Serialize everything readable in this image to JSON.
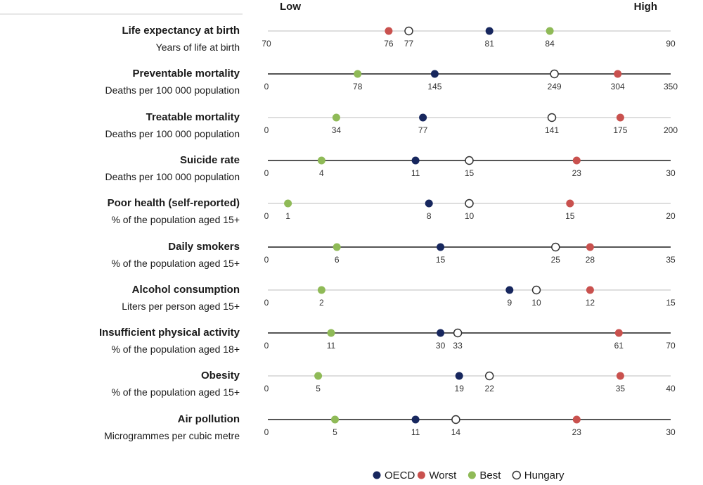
{
  "header": {
    "low": "Low",
    "high": "High"
  },
  "colors": {
    "OECD": "#17275e",
    "Worst": "#c9514e",
    "Best": "#8fba57",
    "Hungary": "#ffffff",
    "stroke_hungary": "#333333"
  },
  "chart_data": {
    "type": "scatter",
    "series_order": [
      "OECD",
      "Worst",
      "Best",
      "Hungary"
    ],
    "legend": [
      "OECD",
      "Worst",
      "Best",
      "Hungary"
    ],
    "legend_position": "bottom-right",
    "rows": [
      {
        "title": "Life expectancy at birth",
        "subtitle": "Years of life at birth",
        "min": 70,
        "max": 90,
        "min_label": "70",
        "max_label": "90",
        "points": {
          "OECD": 81,
          "Worst": 76,
          "Best": 84,
          "Hungary": 77
        },
        "labels": {
          "OECD": "81",
          "Worst": "76",
          "Best": "84",
          "Hungary": "77"
        }
      },
      {
        "title": "Preventable mortality",
        "subtitle": "Deaths per 100 000 population",
        "min": 0,
        "max": 350,
        "min_label": "0",
        "max_label": "350",
        "points": {
          "OECD": 145,
          "Worst": 304,
          "Best": 78,
          "Hungary": 249
        },
        "labels": {
          "OECD": "145",
          "Worst": "304",
          "Best": "78",
          "Hungary": "249"
        }
      },
      {
        "title": "Treatable mortality",
        "subtitle": "Deaths per 100 000 population",
        "min": 0,
        "max": 200,
        "min_label": "0",
        "max_label": "200",
        "points": {
          "OECD": 77,
          "Worst": 175,
          "Best": 34,
          "Hungary": 141
        },
        "labels": {
          "OECD": "77",
          "Worst": "175",
          "Best": "34",
          "Hungary": "141"
        }
      },
      {
        "title": "Suicide rate",
        "subtitle": "Deaths per 100 000 population",
        "min": 0,
        "max": 30,
        "min_label": "0",
        "max_label": "30",
        "points": {
          "OECD": 11,
          "Worst": 23,
          "Best": 4,
          "Hungary": 15
        },
        "labels": {
          "OECD": "11",
          "Worst": "23",
          "Best": "4",
          "Hungary": "15"
        }
      },
      {
        "title": "Poor health (self-reported)",
        "subtitle": "% of the population aged 15+",
        "min": 0,
        "max": 20,
        "min_label": "0",
        "max_label": "20",
        "points": {
          "OECD": 8,
          "Worst": 15,
          "Best": 1,
          "Hungary": 10
        },
        "labels": {
          "OECD": "8",
          "Worst": "15",
          "Best": "1",
          "Hungary": "10"
        }
      },
      {
        "title": "Daily smokers",
        "subtitle": "% of the population aged 15+",
        "min": 0,
        "max": 35,
        "min_label": "0",
        "max_label": "35",
        "points": {
          "OECD": 15,
          "Worst": 28,
          "Best": 6,
          "Hungary": 25
        },
        "labels": {
          "OECD": "15",
          "Worst": "28",
          "Best": "6",
          "Hungary": "25"
        }
      },
      {
        "title": "Alcohol consumption",
        "subtitle": "Liters per person aged 15+",
        "min": 0,
        "max": 15,
        "min_label": "0",
        "max_label": "15",
        "points": {
          "OECD": 9,
          "Worst": 12,
          "Best": 2,
          "Hungary": 10
        },
        "labels": {
          "OECD": "9",
          "Worst": "12",
          "Best": "2",
          "Hungary": "10"
        }
      },
      {
        "title": "Insufficient physical activity",
        "subtitle": "% of the population aged 18+",
        "min": 0,
        "max": 70,
        "min_label": "0",
        "max_label": "70",
        "points": {
          "OECD": 30,
          "Worst": 61,
          "Best": 11,
          "Hungary": 33
        },
        "labels": {
          "OECD": "30",
          "Worst": "61",
          "Best": "11",
          "Hungary": "33"
        }
      },
      {
        "title": "Obesity",
        "subtitle": "% of the population aged 15+",
        "min": 0,
        "max": 40,
        "min_label": "0",
        "max_label": "40",
        "points": {
          "OECD": 19,
          "Worst": 35,
          "Best": 5,
          "Hungary": 22
        },
        "labels": {
          "OECD": "19",
          "Worst": "35",
          "Best": "5",
          "Hungary": "22"
        }
      },
      {
        "title": "Air pollution",
        "subtitle": "Microgrammes per cubic metre",
        "min": 0,
        "max": 30,
        "min_label": "0",
        "max_label": "30",
        "points": {
          "OECD": 11,
          "Worst": 23,
          "Best": 5,
          "Hungary": 14
        },
        "labels": {
          "OECD": "11",
          "Worst": "23",
          "Best": "5",
          "Hungary": "14"
        }
      }
    ]
  }
}
